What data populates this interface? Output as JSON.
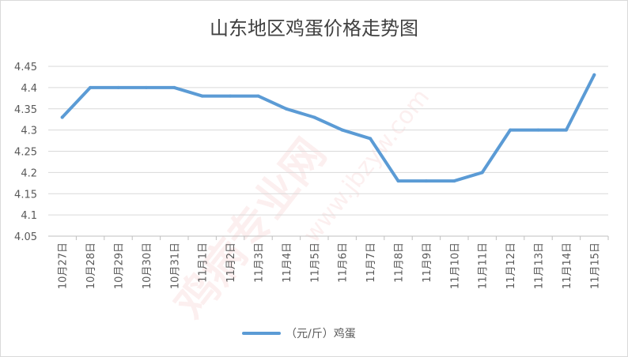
{
  "chart_data": {
    "type": "line",
    "title": "山东地区鸡蛋价格走势图",
    "categories": [
      "10月27日",
      "10月28日",
      "10月29日",
      "10月30日",
      "10月31日",
      "11月1日",
      "11月2日",
      "11月3日",
      "11月4日",
      "11月5日",
      "11月6日",
      "11月7日",
      "11月8日",
      "11月9日",
      "11月10日",
      "11月11日",
      "11月12日",
      "11月13日",
      "11月14日",
      "11月15日"
    ],
    "series": [
      {
        "name": "（元/斤）鸡蛋",
        "color": "#5b9bd5",
        "values": [
          4.33,
          4.4,
          4.4,
          4.4,
          4.4,
          4.38,
          4.38,
          4.38,
          4.35,
          4.33,
          4.3,
          4.28,
          4.18,
          4.18,
          4.18,
          4.2,
          4.3,
          4.3,
          4.3,
          4.43
        ]
      }
    ],
    "ylim": [
      4.05,
      4.45
    ],
    "yticks": [
      "4.05",
      "4.1",
      "4.15",
      "4.2",
      "4.25",
      "4.3",
      "4.35",
      "4.4",
      "4.45"
    ],
    "grid": true,
    "legend_position": "bottom",
    "watermark": {
      "main": "鸡病专业网",
      "url": "www.jbzyw.com"
    }
  }
}
